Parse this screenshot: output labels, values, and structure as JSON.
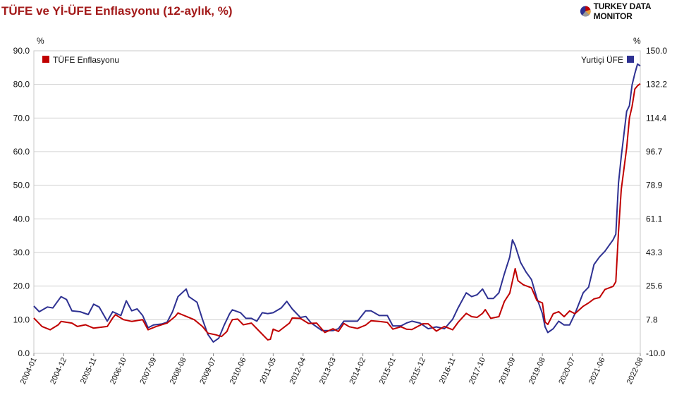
{
  "header": {
    "title": "TÜFE ve Yİ-ÜFE Enflasyonu (12-aylık, %)",
    "brand": "TURKEY DATA MONITOR",
    "brand_icon": "pie-logo-icon"
  },
  "chart_data": {
    "type": "line",
    "title": "TÜFE ve Yİ-ÜFE Enflasyonu (12-aylık, %)",
    "left_axis": {
      "unit": "%",
      "ticks": [
        "0.0",
        "10.0",
        "20.0",
        "30.0",
        "40.0",
        "50.0",
        "60.0",
        "70.0",
        "80.0",
        "90.0"
      ],
      "ylim": [
        0,
        90
      ]
    },
    "right_axis": {
      "unit": "%",
      "ticks": [
        "-10.0",
        "7.8",
        "25.6",
        "43.3",
        "61.1",
        "78.9",
        "96.7",
        "114.4",
        "132.2",
        "150.0"
      ],
      "ylim": [
        -10,
        150
      ]
    },
    "x_start": "2004-01",
    "x_end": "2022-08",
    "x_tick_labels": [
      "2004-01",
      "2004-12",
      "2005-11",
      "2006-10",
      "2007-09",
      "2008-08",
      "2009-07",
      "2010-06",
      "2011-05",
      "2012-04",
      "2013-03",
      "2014-02",
      "2015-01",
      "2015-12",
      "2016-11",
      "2017-10",
      "2018-09",
      "2019-08",
      "2020-07",
      "2021-06",
      "2022-08"
    ],
    "grid": true,
    "series": [
      {
        "name": "TÜFE Enflasyonu",
        "axis": "left",
        "color": "#c00000",
        "legend_position": "top-left",
        "points": [
          [
            "2004-01",
            10.5
          ],
          [
            "2004-04",
            8.0
          ],
          [
            "2004-07",
            7.0
          ],
          [
            "2004-10",
            8.5
          ],
          [
            "2004-11",
            9.5
          ],
          [
            "2005-03",
            9.0
          ],
          [
            "2005-05",
            8.0
          ],
          [
            "2005-08",
            8.5
          ],
          [
            "2005-11",
            7.5
          ],
          [
            "2006-04",
            8.0
          ],
          [
            "2006-06",
            10.5
          ],
          [
            "2006-07",
            11.5
          ],
          [
            "2006-10",
            10.0
          ],
          [
            "2007-01",
            9.5
          ],
          [
            "2007-05",
            10.0
          ],
          [
            "2007-07",
            7.0
          ],
          [
            "2007-10",
            8.0
          ],
          [
            "2008-02",
            9.0
          ],
          [
            "2008-05",
            11.0
          ],
          [
            "2008-06",
            12.0
          ],
          [
            "2008-09",
            11.0
          ],
          [
            "2008-12",
            10.0
          ],
          [
            "2009-03",
            8.0
          ],
          [
            "2009-05",
            6.0
          ],
          [
            "2009-08",
            5.5
          ],
          [
            "2009-10",
            5.0
          ],
          [
            "2009-12",
            6.5
          ],
          [
            "2010-01",
            8.5
          ],
          [
            "2010-02",
            10.0
          ],
          [
            "2010-04",
            10.2
          ],
          [
            "2010-06",
            8.5
          ],
          [
            "2010-09",
            9.0
          ],
          [
            "2010-12",
            6.5
          ],
          [
            "2011-03",
            4.0
          ],
          [
            "2011-04",
            4.2
          ],
          [
            "2011-05",
            7.2
          ],
          [
            "2011-07",
            6.5
          ],
          [
            "2011-11",
            9.0
          ],
          [
            "2011-12",
            10.5
          ],
          [
            "2012-03",
            10.4
          ],
          [
            "2012-06",
            8.9
          ],
          [
            "2012-09",
            9.0
          ],
          [
            "2012-12",
            6.2
          ],
          [
            "2013-03",
            7.3
          ],
          [
            "2013-05",
            6.5
          ],
          [
            "2013-07",
            8.9
          ],
          [
            "2013-09",
            7.9
          ],
          [
            "2013-12",
            7.4
          ],
          [
            "2014-03",
            8.4
          ],
          [
            "2014-05",
            9.7
          ],
          [
            "2014-08",
            9.5
          ],
          [
            "2014-11",
            9.2
          ],
          [
            "2015-01",
            7.2
          ],
          [
            "2015-04",
            7.9
          ],
          [
            "2015-06",
            7.2
          ],
          [
            "2015-08",
            7.1
          ],
          [
            "2015-12",
            8.8
          ],
          [
            "2016-02",
            8.8
          ],
          [
            "2016-05",
            6.6
          ],
          [
            "2016-08",
            8.0
          ],
          [
            "2016-11",
            7.0
          ],
          [
            "2017-01",
            9.2
          ],
          [
            "2017-04",
            11.9
          ],
          [
            "2017-06",
            10.9
          ],
          [
            "2017-08",
            10.7
          ],
          [
            "2017-10",
            11.9
          ],
          [
            "2017-11",
            13.0
          ],
          [
            "2018-01",
            10.4
          ],
          [
            "2018-04",
            10.9
          ],
          [
            "2018-06",
            15.4
          ],
          [
            "2018-08",
            17.9
          ],
          [
            "2018-10",
            25.2
          ],
          [
            "2018-11",
            21.6
          ],
          [
            "2019-01",
            20.4
          ],
          [
            "2019-04",
            19.5
          ],
          [
            "2019-06",
            15.7
          ],
          [
            "2019-08",
            15.0
          ],
          [
            "2019-09",
            9.3
          ],
          [
            "2019-10",
            8.6
          ],
          [
            "2019-12",
            11.8
          ],
          [
            "2020-02",
            12.4
          ],
          [
            "2020-04",
            10.9
          ],
          [
            "2020-06",
            12.6
          ],
          [
            "2020-08",
            11.8
          ],
          [
            "2020-11",
            14.0
          ],
          [
            "2021-01",
            15.0
          ],
          [
            "2021-03",
            16.2
          ],
          [
            "2021-05",
            16.6
          ],
          [
            "2021-07",
            19.0
          ],
          [
            "2021-10",
            19.9
          ],
          [
            "2021-11",
            21.3
          ],
          [
            "2021-12",
            36.1
          ],
          [
            "2022-01",
            48.7
          ],
          [
            "2022-03",
            61.1
          ],
          [
            "2022-04",
            70.0
          ],
          [
            "2022-05",
            73.5
          ],
          [
            "2022-06",
            78.6
          ],
          [
            "2022-07",
            79.6
          ],
          [
            "2022-08",
            80.2
          ]
        ]
      },
      {
        "name": "Yurtiçi ÜFE",
        "axis": "right",
        "color": "#2e3192",
        "legend_position": "top-right",
        "points": [
          [
            "2004-01",
            15.0
          ],
          [
            "2004-03",
            12.0
          ],
          [
            "2004-06",
            14.5
          ],
          [
            "2004-08",
            14.0
          ],
          [
            "2004-11",
            20.0
          ],
          [
            "2005-01",
            18.5
          ],
          [
            "2005-03",
            12.5
          ],
          [
            "2005-06",
            12.0
          ],
          [
            "2005-09",
            10.5
          ],
          [
            "2005-11",
            16.0
          ],
          [
            "2006-01",
            14.5
          ],
          [
            "2006-04",
            7.0
          ],
          [
            "2006-06",
            12.0
          ],
          [
            "2006-09",
            10.0
          ],
          [
            "2006-11",
            17.8
          ],
          [
            "2007-01",
            12.5
          ],
          [
            "2007-03",
            13.5
          ],
          [
            "2007-05",
            10.0
          ],
          [
            "2007-07",
            3.5
          ],
          [
            "2007-09",
            5.0
          ],
          [
            "2007-12",
            5.5
          ],
          [
            "2008-02",
            6.5
          ],
          [
            "2008-04",
            12.0
          ],
          [
            "2008-06",
            20.0
          ],
          [
            "2008-09",
            24.0
          ],
          [
            "2008-10",
            20.0
          ],
          [
            "2009-01",
            17.0
          ],
          [
            "2009-03",
            8.0
          ],
          [
            "2009-05",
            0.0
          ],
          [
            "2009-07",
            -4.0
          ],
          [
            "2009-09",
            -2.0
          ],
          [
            "2009-11",
            5.0
          ],
          [
            "2010-01",
            11.0
          ],
          [
            "2010-02",
            13.0
          ],
          [
            "2010-05",
            11.5
          ],
          [
            "2010-07",
            8.5
          ],
          [
            "2010-09",
            8.5
          ],
          [
            "2010-11",
            7.0
          ],
          [
            "2011-01",
            11.5
          ],
          [
            "2011-03",
            11.0
          ],
          [
            "2011-05",
            11.5
          ],
          [
            "2011-08",
            14.0
          ],
          [
            "2011-10",
            17.5
          ],
          [
            "2011-12",
            13.5
          ],
          [
            "2012-03",
            9.0
          ],
          [
            "2012-05",
            9.5
          ],
          [
            "2012-07",
            6.0
          ],
          [
            "2012-09",
            4.0
          ],
          [
            "2012-11",
            2.0
          ],
          [
            "2013-03",
            2.0
          ],
          [
            "2013-05",
            3.0
          ],
          [
            "2013-07",
            7.0
          ],
          [
            "2013-09",
            7.0
          ],
          [
            "2013-12",
            7.0
          ],
          [
            "2014-03",
            12.5
          ],
          [
            "2014-05",
            12.5
          ],
          [
            "2014-08",
            10.0
          ],
          [
            "2014-11",
            10.0
          ],
          [
            "2015-01",
            4.5
          ],
          [
            "2015-04",
            4.5
          ],
          [
            "2015-06",
            6.0
          ],
          [
            "2015-08",
            7.0
          ],
          [
            "2015-11",
            6.0
          ],
          [
            "2016-02",
            3.0
          ],
          [
            "2016-05",
            4.0
          ],
          [
            "2016-08",
            3.0
          ],
          [
            "2016-11",
            8.0
          ],
          [
            "2017-01",
            14.0
          ],
          [
            "2017-04",
            22.0
          ],
          [
            "2017-06",
            20.0
          ],
          [
            "2017-08",
            21.0
          ],
          [
            "2017-10",
            24.0
          ],
          [
            "2017-12",
            19.0
          ],
          [
            "2018-02",
            19.0
          ],
          [
            "2018-04",
            22.0
          ],
          [
            "2018-06",
            32.0
          ],
          [
            "2018-08",
            41.0
          ],
          [
            "2018-09",
            50.0
          ],
          [
            "2018-10",
            47.0
          ],
          [
            "2018-12",
            38.0
          ],
          [
            "2019-02",
            33.0
          ],
          [
            "2019-04",
            29.0
          ],
          [
            "2019-06",
            19.0
          ],
          [
            "2019-08",
            11.0
          ],
          [
            "2019-09",
            4.0
          ],
          [
            "2019-10",
            1.0
          ],
          [
            "2019-12",
            3.0
          ],
          [
            "2020-02",
            7.0
          ],
          [
            "2020-04",
            5.0
          ],
          [
            "2020-06",
            5.0
          ],
          [
            "2020-08",
            11.0
          ],
          [
            "2020-11",
            22.0
          ],
          [
            "2021-01",
            25.0
          ],
          [
            "2021-03",
            37.0
          ],
          [
            "2021-05",
            41.0
          ],
          [
            "2021-07",
            44.0
          ],
          [
            "2021-10",
            50.0
          ],
          [
            "2021-11",
            53.0
          ],
          [
            "2021-12",
            80.0
          ],
          [
            "2022-01",
            94.0
          ],
          [
            "2022-03",
            118.0
          ],
          [
            "2022-04",
            121.0
          ],
          [
            "2022-05",
            132.0
          ],
          [
            "2022-06",
            138.0
          ],
          [
            "2022-07",
            143.0
          ],
          [
            "2022-08",
            142.0
          ]
        ]
      }
    ]
  }
}
